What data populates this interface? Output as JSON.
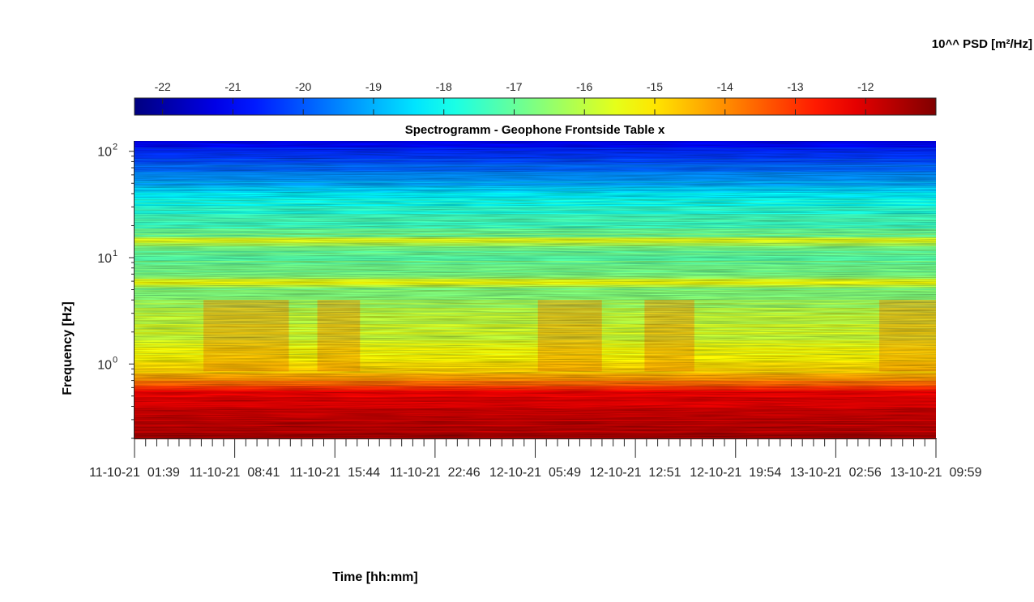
{
  "chart_data": {
    "type": "heatmap",
    "title": "Spectrogramm - Geophone Frontside Table x",
    "xlabel": "Time [hh:mm]",
    "ylabel": "Frequency [Hz]",
    "y_scale": "log",
    "ylim": [
      0.2,
      125
    ],
    "y_ticks": [
      {
        "value": 1,
        "base": "10",
        "exp": "0"
      },
      {
        "value": 10,
        "base": "10",
        "exp": "1"
      },
      {
        "value": 100,
        "base": "10",
        "exp": "2"
      }
    ],
    "x_ticks": [
      "11-10-21  01:39",
      "11-10-21  08:41",
      "11-10-21  15:44",
      "11-10-21  22:46",
      "12-10-21  05:49",
      "12-10-21  12:51",
      "12-10-21  19:54",
      "13-10-21  02:56",
      "13-10-21  09:59"
    ],
    "colorbar": {
      "label": "10^^ PSD [m²/Hz]",
      "ticks": [
        "-22",
        "-21",
        "-20",
        "-19",
        "-18",
        "-17",
        "-16",
        "-15",
        "-14",
        "-13",
        "-12"
      ],
      "range": [
        -22.4,
        -11.0
      ],
      "colormap": "jet"
    },
    "psd_profile": {
      "frequency_hz": [
        0.2,
        0.3,
        0.4,
        0.55,
        0.65,
        0.8,
        1.0,
        1.3,
        2.0,
        3.0,
        4.0,
        5.0,
        6.0,
        6.5,
        8.0,
        10.0,
        12.0,
        14.5,
        16.0,
        20.0,
        30.0,
        40.0,
        50.0,
        70.0,
        100.0,
        125.0
      ],
      "log10_psd": [
        -11.6,
        -11.8,
        -12.1,
        -12.4,
        -13.5,
        -14.6,
        -15.0,
        -15.4,
        -15.8,
        -16.0,
        -16.5,
        -16.8,
        -15.3,
        -16.6,
        -16.8,
        -17.0,
        -17.1,
        -15.5,
        -16.8,
        -17.4,
        -17.8,
        -18.3,
        -19.0,
        -19.8,
        -20.5,
        -21.0
      ]
    },
    "activity_periods": [
      [
        "11-10-21 06:30",
        "11-10-21 12:30"
      ],
      [
        "11-10-21 14:30",
        "11-10-21 17:30"
      ],
      [
        "12-10-21 06:00",
        "12-10-21 10:30"
      ],
      [
        "12-10-21 13:30",
        "12-10-21 17:00"
      ],
      [
        "13-10-21 06:00",
        "13-10-21 09:59"
      ]
    ]
  }
}
